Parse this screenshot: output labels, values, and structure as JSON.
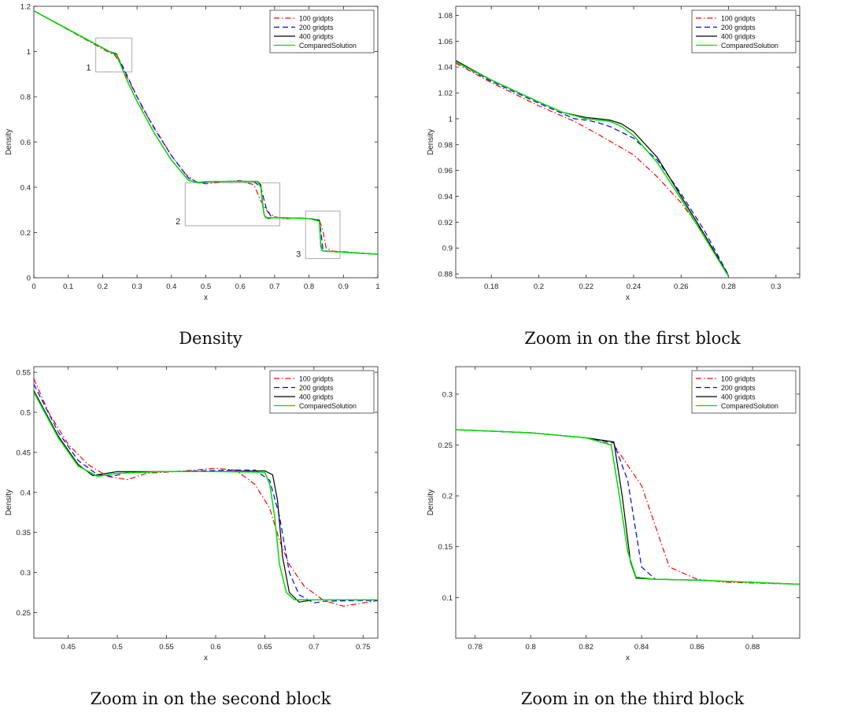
{
  "colors": {
    "s100": "#ff0000",
    "s200": "#0000ff",
    "s400": "#000000",
    "compared": "#00dd00",
    "axis": "#222222",
    "block_box": "#aaaaaa"
  },
  "chart_data": [
    {
      "type": "line",
      "caption": "Density",
      "xlabel": "x",
      "ylabel": "Density",
      "xlim": [
        0,
        1
      ],
      "ylim": [
        0,
        1.2
      ],
      "xticks": [
        0,
        0.1,
        0.2,
        0.3,
        0.4,
        0.5,
        0.6,
        0.7,
        0.8,
        0.9,
        1
      ],
      "xticklabels": [
        "0",
        "0.1",
        "0.2",
        "0.3",
        "0.4",
        "0.5",
        "0.6",
        "0.7",
        "0.8",
        "0.9",
        "1"
      ],
      "yticks": [
        0,
        0.2,
        0.4,
        0.6,
        0.8,
        1,
        1.2
      ],
      "yticklabels": [
        "0",
        "0.2",
        "0.4",
        "0.6",
        "0.8",
        "1",
        "1.2"
      ],
      "legend": {
        "position": "top-right",
        "entries": [
          "100 gridpts",
          "200 gridpts",
          "400 gridpts",
          "ComparedSolution"
        ]
      },
      "boxes": [
        {
          "label": "1",
          "x": [
            0.18,
            0.285
          ],
          "y": [
            0.91,
            1.06
          ]
        },
        {
          "label": "2",
          "x": [
            0.44,
            0.715
          ],
          "y": [
            0.23,
            0.42
          ]
        },
        {
          "label": "3",
          "x": [
            0.79,
            0.89
          ],
          "y": [
            0.085,
            0.295
          ]
        }
      ],
      "series": [
        {
          "name": "100 gridpts",
          "style": "dashdot",
          "color": "#ff0000",
          "x": [
            0,
            0.22,
            0.235,
            0.25,
            0.28,
            0.32,
            0.36,
            0.4,
            0.44,
            0.47,
            0.5,
            0.55,
            0.6,
            0.64,
            0.66,
            0.68,
            0.7,
            0.73,
            0.76,
            0.8,
            0.83,
            0.84,
            0.85,
            0.87,
            0.9,
            1
          ],
          "y": [
            1.18,
            0.995,
            0.985,
            0.95,
            0.86,
            0.74,
            0.64,
            0.54,
            0.46,
            0.425,
            0.415,
            0.425,
            0.43,
            0.41,
            0.34,
            0.29,
            0.27,
            0.26,
            0.265,
            0.262,
            0.255,
            0.21,
            0.13,
            0.118,
            0.115,
            0.104
          ]
        },
        {
          "name": "200 gridpts",
          "style": "dashed",
          "color": "#0000ff",
          "x": [
            0,
            0.22,
            0.24,
            0.26,
            0.3,
            0.35,
            0.4,
            0.45,
            0.48,
            0.52,
            0.6,
            0.64,
            0.66,
            0.675,
            0.69,
            0.71,
            0.8,
            0.83,
            0.835,
            0.84,
            0.845,
            0.86,
            1
          ],
          "y": [
            1.18,
            0.999,
            0.985,
            0.93,
            0.8,
            0.66,
            0.54,
            0.44,
            0.42,
            0.425,
            0.426,
            0.425,
            0.4,
            0.31,
            0.27,
            0.265,
            0.262,
            0.255,
            0.2,
            0.13,
            0.12,
            0.117,
            0.104
          ]
        },
        {
          "name": "400 gridpts",
          "style": "solid",
          "color": "#000000",
          "x": [
            0,
            0.22,
            0.24,
            0.25,
            0.27,
            0.3,
            0.35,
            0.4,
            0.45,
            0.48,
            0.5,
            0.6,
            0.65,
            0.66,
            0.665,
            0.67,
            0.68,
            0.7,
            0.8,
            0.83,
            0.834,
            0.838,
            0.845,
            1
          ],
          "y": [
            1.18,
            1.0,
            0.99,
            0.955,
            0.875,
            0.78,
            0.64,
            0.52,
            0.43,
            0.42,
            0.425,
            0.426,
            0.426,
            0.41,
            0.33,
            0.275,
            0.262,
            0.266,
            0.262,
            0.254,
            0.14,
            0.12,
            0.118,
            0.104
          ]
        },
        {
          "name": "ComparedSolution",
          "style": "solid",
          "color": "#00dd00",
          "x": [
            0,
            0.22,
            0.24,
            0.25,
            0.27,
            0.3,
            0.35,
            0.4,
            0.45,
            0.48,
            0.5,
            0.6,
            0.65,
            0.66,
            0.665,
            0.67,
            0.675,
            0.7,
            0.8,
            0.83,
            0.834,
            0.838,
            0.845,
            1
          ],
          "y": [
            1.18,
            1.0,
            0.985,
            0.95,
            0.875,
            0.78,
            0.64,
            0.52,
            0.43,
            0.422,
            0.425,
            0.426,
            0.425,
            0.4,
            0.32,
            0.275,
            0.265,
            0.265,
            0.262,
            0.25,
            0.15,
            0.12,
            0.118,
            0.104
          ]
        }
      ]
    },
    {
      "type": "line",
      "caption": "Zoom in on the first block",
      "xlabel": "x",
      "ylabel": "Density",
      "xlim": [
        0.165,
        0.31
      ],
      "ylim": [
        0.877,
        1.087
      ],
      "xticks": [
        0.18,
        0.2,
        0.22,
        0.24,
        0.26,
        0.28,
        0.3
      ],
      "xticklabels": [
        "0.18",
        "0.2",
        "0.22",
        "0.24",
        "0.26",
        "0.28",
        "0.3"
      ],
      "yticks": [
        0.88,
        0.9,
        0.92,
        0.94,
        0.96,
        0.98,
        1,
        1.02,
        1.04,
        1.06,
        1.08
      ],
      "yticklabels": [
        "0.88",
        "0.9",
        "0.92",
        "0.94",
        "0.96",
        "0.98",
        "1",
        "1.02",
        "1.04",
        "1.06",
        "1.08"
      ],
      "legend": {
        "position": "top-right",
        "entries": [
          "100 gridpts",
          "200 gridpts",
          "400 gridpts",
          "ComparedSolution"
        ]
      },
      "boxes": [],
      "series": [
        {
          "name": "100 gridpts",
          "style": "dashdot",
          "color": "#ff0000",
          "x": [
            0.165,
            0.18,
            0.2,
            0.215,
            0.225,
            0.24,
            0.25,
            0.26,
            0.27,
            0.28
          ],
          "y": [
            1.043,
            1.028,
            1.01,
            0.998,
            0.988,
            0.972,
            0.955,
            0.935,
            0.91,
            0.879
          ]
        },
        {
          "name": "200 gridpts",
          "style": "dashed",
          "color": "#0000ff",
          "x": [
            0.165,
            0.18,
            0.2,
            0.215,
            0.22,
            0.225,
            0.23,
            0.24,
            0.25,
            0.26,
            0.27,
            0.28
          ],
          "y": [
            1.044,
            1.029,
            1.012,
            1.0,
            0.999,
            0.997,
            0.994,
            0.985,
            0.968,
            0.942,
            0.913,
            0.879
          ]
        },
        {
          "name": "400 gridpts",
          "style": "solid",
          "color": "#000000",
          "x": [
            0.165,
            0.18,
            0.2,
            0.21,
            0.22,
            0.225,
            0.23,
            0.235,
            0.24,
            0.25,
            0.26,
            0.27,
            0.28
          ],
          "y": [
            1.045,
            1.03,
            1.013,
            1.005,
            1.001,
            1.0,
            0.999,
            0.996,
            0.99,
            0.97,
            0.94,
            0.91,
            0.878
          ]
        },
        {
          "name": "ComparedSolution",
          "style": "solid",
          "color": "#00dd00",
          "x": [
            0.165,
            0.18,
            0.2,
            0.21,
            0.22,
            0.225,
            0.23,
            0.235,
            0.24,
            0.25,
            0.26,
            0.27,
            0.28
          ],
          "y": [
            1.044,
            1.03,
            1.013,
            1.005,
            1.0,
            0.999,
            0.998,
            0.994,
            0.987,
            0.966,
            0.938,
            0.908,
            0.878
          ]
        }
      ]
    },
    {
      "type": "line",
      "caption": "Zoom in on the second block",
      "xlabel": "x",
      "ylabel": "Density",
      "xlim": [
        0.415,
        0.765
      ],
      "ylim": [
        0.218,
        0.557
      ],
      "xticks": [
        0.45,
        0.5,
        0.55,
        0.6,
        0.65,
        0.7,
        0.75
      ],
      "xticklabels": [
        "0.45",
        "0.5",
        "0.55",
        "0.6",
        "0.65",
        "0.7",
        "0.75"
      ],
      "yticks": [
        0.25,
        0.3,
        0.35,
        0.4,
        0.45,
        0.5,
        0.55
      ],
      "yticklabels": [
        "0.25",
        "0.3",
        "0.35",
        "0.4",
        "0.45",
        "0.5",
        "0.55"
      ],
      "legend": {
        "position": "top-right",
        "entries": [
          "100 gridpts",
          "200 gridpts",
          "400 gridpts",
          "ComparedSolution"
        ]
      },
      "boxes": [],
      "series": [
        {
          "name": "100 gridpts",
          "style": "dashdot",
          "color": "#ff0000",
          "x": [
            0.415,
            0.43,
            0.45,
            0.47,
            0.49,
            0.51,
            0.53,
            0.56,
            0.6,
            0.62,
            0.64,
            0.655,
            0.665,
            0.675,
            0.69,
            0.71,
            0.73,
            0.75,
            0.765
          ],
          "y": [
            0.542,
            0.5,
            0.46,
            0.435,
            0.42,
            0.416,
            0.424,
            0.426,
            0.43,
            0.428,
            0.41,
            0.38,
            0.34,
            0.31,
            0.283,
            0.265,
            0.258,
            0.262,
            0.265
          ]
        },
        {
          "name": "200 gridpts",
          "style": "dashed",
          "color": "#0000ff",
          "x": [
            0.415,
            0.44,
            0.46,
            0.48,
            0.495,
            0.51,
            0.55,
            0.62,
            0.64,
            0.655,
            0.665,
            0.675,
            0.685,
            0.7,
            0.71,
            0.74,
            0.765
          ],
          "y": [
            0.535,
            0.475,
            0.44,
            0.422,
            0.42,
            0.425,
            0.426,
            0.428,
            0.428,
            0.415,
            0.37,
            0.3,
            0.272,
            0.262,
            0.264,
            0.265,
            0.265
          ]
        },
        {
          "name": "400 gridpts",
          "style": "solid",
          "color": "#000000",
          "x": [
            0.415,
            0.44,
            0.46,
            0.475,
            0.49,
            0.5,
            0.55,
            0.6,
            0.65,
            0.658,
            0.663,
            0.668,
            0.675,
            0.685,
            0.7,
            0.765
          ],
          "y": [
            0.527,
            0.47,
            0.435,
            0.421,
            0.424,
            0.426,
            0.426,
            0.426,
            0.427,
            0.422,
            0.39,
            0.32,
            0.275,
            0.263,
            0.266,
            0.266
          ]
        },
        {
          "name": "ComparedSolution",
          "style": "solid",
          "color": "#00dd00",
          "x": [
            0.415,
            0.44,
            0.46,
            0.48,
            0.5,
            0.55,
            0.6,
            0.65,
            0.655,
            0.66,
            0.665,
            0.672,
            0.68,
            0.7,
            0.765
          ],
          "y": [
            0.525,
            0.468,
            0.433,
            0.42,
            0.424,
            0.426,
            0.426,
            0.425,
            0.41,
            0.37,
            0.31,
            0.275,
            0.266,
            0.266,
            0.266
          ]
        }
      ]
    },
    {
      "type": "line",
      "caption": "Zoom in on the third block",
      "xlabel": "x",
      "ylabel": "Density",
      "xlim": [
        0.773,
        0.897
      ],
      "ylim": [
        0.06,
        0.327
      ],
      "xticks": [
        0.78,
        0.8,
        0.82,
        0.84,
        0.86,
        0.88
      ],
      "xticklabels": [
        "0.78",
        "0.8",
        "0.82",
        "0.84",
        "0.86",
        "0.88"
      ],
      "yticks": [
        0.1,
        0.15,
        0.2,
        0.25,
        0.3
      ],
      "yticklabels": [
        "0.1",
        "0.15",
        "0.2",
        "0.25",
        "0.3"
      ],
      "legend": {
        "position": "top-right",
        "entries": [
          "100 gridpts",
          "200 gridpts",
          "400 gridpts",
          "ComparedSolution"
        ]
      },
      "boxes": [],
      "series": [
        {
          "name": "100 gridpts",
          "style": "dashdot",
          "color": "#ff0000",
          "x": [
            0.773,
            0.8,
            0.82,
            0.83,
            0.84,
            0.85,
            0.86,
            0.87,
            0.897
          ],
          "y": [
            0.265,
            0.262,
            0.257,
            0.25,
            0.21,
            0.13,
            0.118,
            0.115,
            0.113
          ]
        },
        {
          "name": "200 gridpts",
          "style": "dashed",
          "color": "#0000ff",
          "x": [
            0.773,
            0.8,
            0.82,
            0.83,
            0.835,
            0.84,
            0.845,
            0.86,
            0.897
          ],
          "y": [
            0.265,
            0.262,
            0.257,
            0.252,
            0.215,
            0.13,
            0.118,
            0.117,
            0.113
          ]
        },
        {
          "name": "400 gridpts",
          "style": "solid",
          "color": "#000000",
          "x": [
            0.773,
            0.8,
            0.82,
            0.83,
            0.833,
            0.836,
            0.838,
            0.845,
            0.86,
            0.897
          ],
          "y": [
            0.265,
            0.262,
            0.257,
            0.253,
            0.2,
            0.135,
            0.119,
            0.118,
            0.117,
            0.113
          ]
        },
        {
          "name": "ComparedSolution",
          "style": "solid",
          "color": "#00dd00",
          "x": [
            0.773,
            0.8,
            0.82,
            0.829,
            0.832,
            0.835,
            0.838,
            0.845,
            0.86,
            0.897
          ],
          "y": [
            0.265,
            0.262,
            0.257,
            0.25,
            0.2,
            0.145,
            0.12,
            0.118,
            0.117,
            0.113
          ]
        }
      ]
    }
  ]
}
